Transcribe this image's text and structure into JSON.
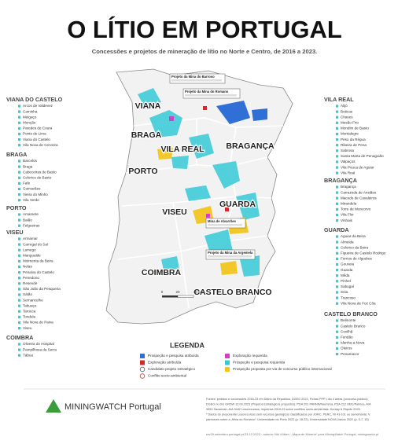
{
  "title": "O LÍTIO EM PORTUGAL",
  "subtitle": "Concessões e projetos de mineração de lítio no Norte e Centro, de 2016 a 2023.",
  "districts_left": [
    {
      "name": "VIANA DO CASTELO",
      "municipalities": [
        "Arcos de Valdevez",
        "Caminha",
        "Melgaço",
        "Monção",
        "Paredes de Coura",
        "Ponte de Lima",
        "Viana do Castelo",
        "Vila Nova de Cerveira"
      ]
    },
    {
      "name": "BRAGA",
      "municipalities": [
        "Barcelos",
        "Braga",
        "Cabeceiras de Basto",
        "Celorico de Basto",
        "Fafe",
        "Guimarães",
        "Vieira do Minho",
        "Vila Verde"
      ]
    },
    {
      "name": "PORTO",
      "municipalities": [
        "Amarante",
        "Baião",
        "Felgueiras"
      ]
    },
    {
      "name": "VISEU",
      "municipalities": [
        "Armamar",
        "Carregal do Sal",
        "Lamego",
        "Mangualde",
        "Moimenta da Beira",
        "Nelas",
        "Penalva do Castelo",
        "Penedono",
        "Resende",
        "São João da Pesqueira",
        "Sátão",
        "Sernancelhe",
        "Tabuaço",
        "Tarouca",
        "Tondela",
        "Vila Nova de Paiva",
        "Viseu"
      ]
    },
    {
      "name": "COIMBRA",
      "municipalities": [
        "Oliveira do Hospital",
        "Pampilhosa da Serra",
        "Tábua"
      ]
    }
  ],
  "districts_right": [
    {
      "name": "VILA REAL",
      "municipalities": [
        "Alijó",
        "Boticas",
        "Chaves",
        "Mesão Frio",
        "Mondim de Basto",
        "Montalegre",
        "Peso da Régua",
        "Ribeira de Pena",
        "Sabrosa",
        "Santa Marta de Penaguião",
        "Valpaços",
        "Vila Pouca de Aguiar",
        "Vila Real"
      ]
    },
    {
      "name": "BRAGANÇA",
      "municipalities": [
        "Bragança",
        "Carrazeda de Ansiães",
        "Macedo de Cavaleiros",
        "Mirandela",
        "Torre de Moncorvo",
        "Vila Flor",
        "Vinhais"
      ]
    },
    {
      "name": "GUARDA",
      "municipalities": [
        "Aguiar da Beira",
        "Almeida",
        "Celorico da Beira",
        "Figueira de Castelo Rodrigo",
        "Fornos de Algodres",
        "Gouveia",
        "Guarda",
        "Mêda",
        "Pinhel",
        "Sabugal",
        "Seia",
        "Trancoso",
        "Vila Nova de Foz Côa"
      ]
    },
    {
      "name": "CASTELO BRANCO",
      "municipalities": [
        "Belmonte",
        "Castelo Branco",
        "Covilhã",
        "Fundão",
        "Idanha-a-Nova",
        "Oleiros",
        "Penamacor"
      ]
    }
  ],
  "map_labels": [
    "VIANA",
    "BRAGA",
    "PORTO",
    "VILA REAL",
    "BRAGANÇA",
    "VISEU",
    "GUARDA",
    "COIMBRA",
    "CASTELO BRANCO"
  ],
  "callouts": [
    "Projeto da Mina do Barroso",
    "Projeto da Mina do Romano",
    "Mina de Alvarrões",
    "Projeto da Mina da Argemela"
  ],
  "scale": [
    "0",
    "20",
    "40 km"
  ],
  "legend": {
    "title": "LEGENDA",
    "items": [
      {
        "label": "Prospeção e pesquisa atribuída",
        "color": "#2f6fd6"
      },
      {
        "label": "Exploração requerida",
        "color": "#d43fc8"
      },
      {
        "label": "Exploração atribuída",
        "color": "#d62828"
      },
      {
        "label": "Prospeção e pesquisa requerida",
        "color": "#35c9d6"
      },
      {
        "label": "Candidato projeto estratégico",
        "color": "#555555"
      },
      {
        "label": "Prospeção proposta por via de concurso público internacional",
        "color": "#f2c414"
      },
      {
        "label": "Conflito socio-ambiental",
        "color": "#c0392b"
      }
    ]
  },
  "footer": {
    "brand": "MININGWATCH Portugal",
    "sources": [
      "Fontes: pedidos e concessões 2016-23 em Diário da República, DGEG 2022, Fichas PPP Lítio 4 áreas (concurso público),",
      "DGEG no DG GRSW 12.09.2023 (Projetos Estratégicos propostos); PDA 201 PANNN/Naemma, PDA 212 SMC/Palmoa, AIA",
      "3353 Savannah, AIA 3442 Lusorecursos; imprensa 2019-23 sobre conflitos socio-ambientais; Dunlap & Riquito 2023.",
      "* Dados do proponente Lusorecursos sem recursos geológicos classificados por JORC, PERC, NI 43-101 ou semelhante; V.",
      "pareceres sobre a „Mina do Romano“: Universidade do Porto 2022 (p. 18-22), Universidade NOVA Lisboa 2022 (p. 5-7, 15)"
    ],
    "credit": "rev29.setembro.portugal.pt 23.12.2023 · autoria: Nik Völker / „Mapa de Minería“ para MiningWatch Portugal, miningwatch.pt"
  }
}
